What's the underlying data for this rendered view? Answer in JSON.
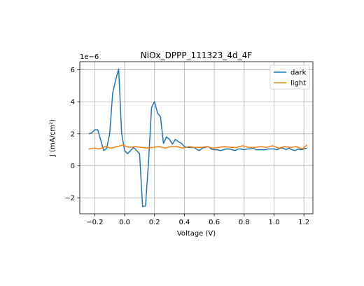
{
  "chart_data": {
    "type": "line",
    "title": "NiOx_DPPP_111323_4d_4F",
    "xlabel": "Voltage (V)",
    "ylabel": "J (mA/cm²)",
    "y_offset_label": "1e−6",
    "xlim": [
      -0.3,
      1.26
    ],
    "ylim": [
      -3.0,
      6.5
    ],
    "x_ticks": [
      -0.2,
      0.0,
      0.2,
      0.4,
      0.6,
      0.8,
      1.0,
      1.2
    ],
    "x_tick_labels": [
      "−0.2",
      "0.0",
      "0.2",
      "0.4",
      "0.6",
      "0.8",
      "1.0",
      "1.2"
    ],
    "y_ticks": [
      -2,
      0,
      2,
      4,
      6
    ],
    "y_tick_labels": [
      "−2",
      "0",
      "2",
      "4",
      "6"
    ],
    "grid": true,
    "legend_position": "top-right",
    "series": [
      {
        "name": "dark",
        "color": "#1f77b4",
        "x": [
          -0.24,
          -0.22,
          -0.2,
          -0.18,
          -0.16,
          -0.14,
          -0.12,
          -0.1,
          -0.08,
          -0.06,
          -0.04,
          -0.02,
          0.0,
          0.02,
          0.04,
          0.06,
          0.08,
          0.1,
          0.12,
          0.14,
          0.16,
          0.18,
          0.2,
          0.22,
          0.24,
          0.26,
          0.28,
          0.3,
          0.32,
          0.34,
          0.36,
          0.38,
          0.4,
          0.42,
          0.44,
          0.46,
          0.48,
          0.5,
          0.52,
          0.54,
          0.56,
          0.58,
          0.6,
          0.62,
          0.64,
          0.66,
          0.68,
          0.7,
          0.72,
          0.74,
          0.76,
          0.78,
          0.8,
          0.82,
          0.84,
          0.86,
          0.88,
          0.9,
          0.92,
          0.94,
          0.96,
          0.98,
          1.0,
          1.02,
          1.04,
          1.06,
          1.08,
          1.1,
          1.12,
          1.14,
          1.16,
          1.18,
          1.2,
          1.22
        ],
        "values": [
          2.0,
          2.05,
          2.25,
          2.25,
          1.6,
          0.95,
          1.1,
          2.0,
          4.55,
          5.35,
          6.05,
          2.0,
          0.95,
          0.75,
          0.95,
          1.15,
          0.95,
          0.75,
          -2.55,
          -2.5,
          0.25,
          3.65,
          4.0,
          3.3,
          3.05,
          1.4,
          1.8,
          1.65,
          1.35,
          1.65,
          1.5,
          1.4,
          1.2,
          1.15,
          1.15,
          1.15,
          1.05,
          0.95,
          1.1,
          1.15,
          1.2,
          1.05,
          1.0,
          1.0,
          0.95,
          1.0,
          1.05,
          1.05,
          1.0,
          0.95,
          1.05,
          1.05,
          1.0,
          1.05,
          1.05,
          1.1,
          1.0,
          1.0,
          1.0,
          1.0,
          1.05,
          1.05,
          1.05,
          1.0,
          1.1,
          1.1,
          1.0,
          1.1,
          1.0,
          0.95,
          1.05,
          1.0,
          1.05,
          1.1
        ],
        "x_points": [
          -0.24,
          -0.22,
          -0.2,
          -0.18,
          -0.16,
          -0.15,
          -0.12,
          -0.1,
          -0.09,
          -0.06,
          -0.03,
          -0.01,
          0.0,
          0.03,
          0.05,
          0.08,
          0.1,
          0.12,
          0.15,
          0.17,
          0.2,
          0.22,
          0.25,
          0.27,
          0.3,
          0.32,
          0.35,
          0.37,
          0.39,
          0.42,
          0.44,
          0.47,
          0.49,
          0.52,
          0.54,
          0.57,
          0.59,
          0.61,
          0.64,
          0.66,
          0.69,
          0.71,
          0.74,
          0.76,
          0.78,
          0.81,
          0.83,
          0.86,
          0.88,
          0.91,
          0.93,
          0.96,
          0.98,
          1.0,
          1.03,
          1.05,
          1.08,
          1.1,
          1.13,
          1.15,
          1.18,
          1.2,
          1.22
        ]
      },
      {
        "name": "light",
        "color": "#ff7f0e",
        "x": [
          -0.24,
          -0.2,
          -0.17,
          -0.13,
          -0.09,
          -0.05,
          -0.01,
          0.0,
          0.03,
          0.07,
          0.11,
          0.15,
          0.19,
          0.23,
          0.27,
          0.31,
          0.35,
          0.39,
          0.43,
          0.47,
          0.51,
          0.55,
          0.59,
          0.63,
          0.67,
          0.71,
          0.75,
          0.79,
          0.83,
          0.87,
          0.91,
          0.95,
          0.99,
          1.03,
          1.07,
          1.11,
          1.15,
          1.19,
          1.22
        ],
        "values": [
          1.05,
          1.1,
          1.05,
          1.2,
          1.1,
          1.2,
          1.3,
          1.25,
          1.15,
          1.2,
          1.15,
          1.1,
          1.15,
          1.2,
          1.1,
          1.2,
          1.2,
          1.1,
          1.2,
          1.15,
          1.15,
          1.2,
          1.1,
          1.15,
          1.2,
          1.15,
          1.15,
          1.25,
          1.15,
          1.15,
          1.2,
          1.15,
          1.25,
          1.1,
          1.2,
          1.15,
          1.2,
          1.05,
          1.3
        ]
      }
    ]
  }
}
